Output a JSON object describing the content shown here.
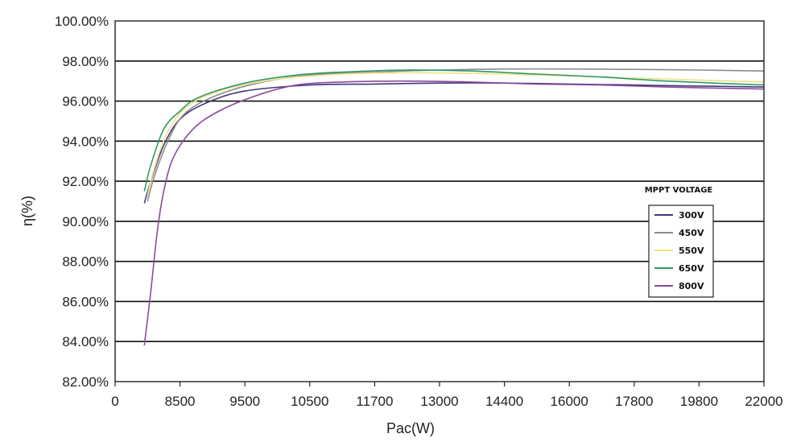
{
  "chart_data": {
    "type": "line",
    "title": "",
    "xlabel": "Pac(W)",
    "ylabel": "η(%)",
    "x_ticks": [
      "0",
      "8500",
      "9500",
      "10500",
      "11700",
      "13000",
      "14400",
      "16000",
      "17800",
      "19800",
      "22000"
    ],
    "y_ticks": [
      "100.00%",
      "98.00%",
      "96.00%",
      "94.00%",
      "92.00%",
      "90.00%",
      "88.00%",
      "86.00%",
      "84.00%",
      "82.00%"
    ],
    "ylim": [
      82,
      100
    ],
    "grid": "horizontal",
    "legend": {
      "title": "MPPT VOLTAGE",
      "position": "right"
    },
    "series": [
      {
        "name": "300V",
        "color": "#3d3a78",
        "points": [
          [
            0.45,
            90.9
          ],
          [
            0.55,
            92.0
          ],
          [
            0.75,
            93.8
          ],
          [
            1.0,
            95.1
          ],
          [
            1.4,
            95.9
          ],
          [
            2.0,
            96.5
          ],
          [
            3.0,
            96.8
          ],
          [
            4.0,
            96.85
          ],
          [
            5.0,
            96.9
          ],
          [
            6.0,
            96.9
          ],
          [
            7.0,
            96.85
          ],
          [
            8.0,
            96.8
          ],
          [
            9.0,
            96.75
          ],
          [
            10.0,
            96.7
          ]
        ]
      },
      {
        "name": "450V",
        "color": "#8c8c8c",
        "points": [
          [
            0.5,
            91.0
          ],
          [
            0.6,
            92.2
          ],
          [
            0.8,
            93.9
          ],
          [
            1.05,
            95.3
          ],
          [
            1.5,
            96.2
          ],
          [
            2.2,
            96.9
          ],
          [
            3.0,
            97.3
          ],
          [
            4.0,
            97.45
          ],
          [
            5.0,
            97.55
          ],
          [
            6.0,
            97.6
          ],
          [
            7.0,
            97.6
          ],
          [
            8.0,
            97.58
          ],
          [
            9.0,
            97.55
          ],
          [
            10.0,
            97.5
          ]
        ]
      },
      {
        "name": "550V",
        "color": "#f0e08a",
        "points": [
          [
            0.5,
            91.3
          ],
          [
            0.6,
            92.6
          ],
          [
            0.8,
            94.4
          ],
          [
            1.1,
            95.7
          ],
          [
            1.6,
            96.5
          ],
          [
            2.3,
            97.0
          ],
          [
            3.0,
            97.25
          ],
          [
            4.0,
            97.4
          ],
          [
            5.0,
            97.4
          ],
          [
            6.0,
            97.35
          ],
          [
            7.0,
            97.25
          ],
          [
            8.0,
            97.15
          ],
          [
            9.0,
            97.05
          ],
          [
            10.0,
            96.95
          ]
        ]
      },
      {
        "name": "650V",
        "color": "#2f9a67",
        "points": [
          [
            0.45,
            91.5
          ],
          [
            0.55,
            92.8
          ],
          [
            0.75,
            94.6
          ],
          [
            1.0,
            95.5
          ],
          [
            1.3,
            96.2
          ],
          [
            2.0,
            96.9
          ],
          [
            2.8,
            97.3
          ],
          [
            3.5,
            97.45
          ],
          [
            4.5,
            97.55
          ],
          [
            5.5,
            97.5
          ],
          [
            6.5,
            97.35
          ],
          [
            7.5,
            97.2
          ],
          [
            8.5,
            97.0
          ],
          [
            10.0,
            96.8
          ]
        ]
      },
      {
        "name": "800V",
        "color": "#8b4a9c",
        "points": [
          [
            0.45,
            83.8
          ],
          [
            0.55,
            86.5
          ],
          [
            0.65,
            89.5
          ],
          [
            0.75,
            91.5
          ],
          [
            0.9,
            93.2
          ],
          [
            1.2,
            94.6
          ],
          [
            1.6,
            95.5
          ],
          [
            2.2,
            96.3
          ],
          [
            2.8,
            96.8
          ],
          [
            3.5,
            96.95
          ],
          [
            4.5,
            97.0
          ],
          [
            5.5,
            96.95
          ],
          [
            6.5,
            96.85
          ],
          [
            7.5,
            96.8
          ],
          [
            8.5,
            96.7
          ],
          [
            10.0,
            96.6
          ]
        ]
      }
    ]
  }
}
